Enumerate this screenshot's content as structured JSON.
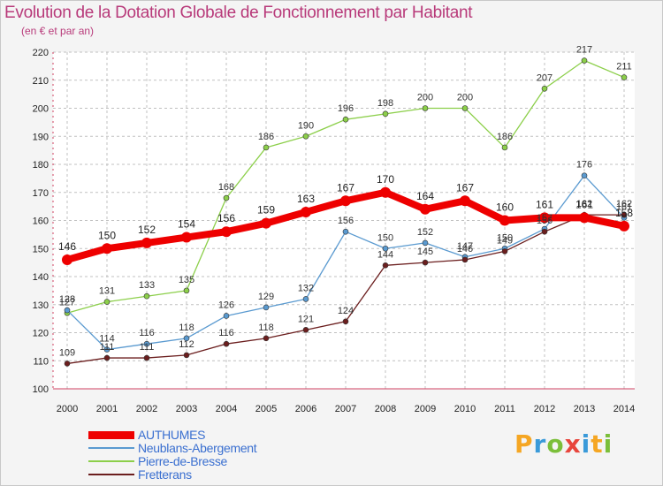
{
  "header": {
    "title": "Evolution de la Dotation Globale de Fonctionnement par Habitant",
    "subtitle": "(en € et par an)"
  },
  "logo": {
    "letters": [
      "P",
      "r",
      "o",
      "x",
      "i",
      "t",
      "i"
    ],
    "colors": [
      "#f5a623",
      "#3a9ad9",
      "#7bbf3a",
      "#e8453c",
      "#3a9ad9",
      "#f5a623",
      "#7bbf3a"
    ]
  },
  "chart_data": {
    "type": "line",
    "title": "Evolution de la Dotation Globale de Fonctionnement par Habitant",
    "subtitle": "(en € et par an)",
    "x": [
      "2000",
      "2001",
      "2002",
      "2003",
      "2004",
      "2005",
      "2006",
      "2007",
      "2008",
      "2009",
      "2010",
      "2011",
      "2012",
      "2013",
      "2014"
    ],
    "ylim": [
      100,
      220
    ],
    "yticks": [
      100,
      110,
      120,
      130,
      140,
      150,
      160,
      170,
      180,
      190,
      200,
      210,
      220
    ],
    "grid": true,
    "legend_position": "bottom-left",
    "series": [
      {
        "name": "AUTHUMES",
        "color": "#ee0000",
        "values": [
          146,
          150,
          152,
          154,
          156,
          159,
          163,
          167,
          170,
          164,
          167,
          160,
          161,
          161,
          158
        ]
      },
      {
        "name": "Neublans-Abergement",
        "color": "#5a9ad0",
        "values": [
          128,
          114,
          116,
          118,
          126,
          129,
          132,
          156,
          150,
          152,
          147,
          150,
          157,
          176,
          161
        ]
      },
      {
        "name": "Pierre-de-Bresse",
        "color": "#8ccf4a",
        "values": [
          127,
          131,
          133,
          135,
          168,
          186,
          190,
          196,
          198,
          200,
          200,
          186,
          207,
          217,
          211
        ]
      },
      {
        "name": "Fretterans",
        "color": "#6b1e1e",
        "values": [
          109,
          111,
          111,
          112,
          116,
          118,
          121,
          124,
          144,
          145,
          146,
          149,
          156,
          162,
          162
        ]
      }
    ]
  }
}
